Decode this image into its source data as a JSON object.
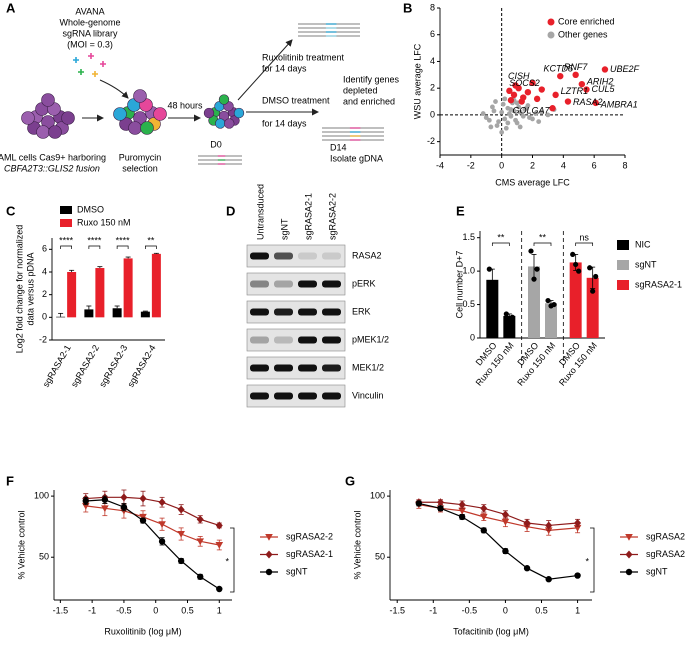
{
  "panel_labels": [
    "A",
    "B",
    "C",
    "D",
    "E",
    "F",
    "G"
  ],
  "diagram": {
    "texts": [
      "AVANA",
      "Whole-genome",
      "sgRNA library",
      "(MOI = 0.3)",
      "48 hours",
      "Ruxolitinib treatment",
      "for 14 days",
      "Identify genes",
      "depleted",
      "and enriched",
      "DMSO treatment",
      "for 14 days",
      "D0",
      "D14",
      "Isolate gDNA",
      "AML cells Cas9+ harboring",
      "CBFA2T3::GLIS2 fusion",
      "Puromycin",
      "selection"
    ]
  },
  "blot": {
    "lanes": [
      "Untransduced",
      "sgNT",
      "sgRASA2-1",
      "sgRASA2-2"
    ],
    "rows": [
      "RASA2",
      "pERK",
      "ERK",
      "pMEK1/2",
      "MEK1/2",
      "Vinculin"
    ]
  },
  "chart_data": [
    {
      "type": "scatter",
      "xlabel": "CMS  average LFC",
      "ylabel": "WSU average LFC",
      "xlim": [
        -4,
        8
      ],
      "xticks": [
        -4,
        -2,
        0,
        2,
        4,
        6,
        8
      ],
      "ylim": [
        -3,
        8
      ],
      "yticks": [
        -2,
        0,
        2,
        4,
        6,
        8
      ],
      "reference_lines": {
        "x": 0,
        "y": 0
      },
      "legend": "upper right",
      "series": [
        {
          "name": "Other genes",
          "color": "#a6a6a6",
          "x": [
            -1.2,
            -0.8,
            -0.5,
            -0.3,
            0,
            0.2,
            0.4,
            0.6,
            0.8,
            1.0,
            1.2,
            1.5,
            1.8,
            2.2,
            -1.0,
            -0.6,
            -0.2,
            0.1,
            0.3,
            0.5,
            0.7,
            0.9,
            1.1,
            1.4,
            1.7,
            2.0,
            2.6,
            3.0,
            -0.4,
            0.0,
            0.4,
            0.8,
            1.2,
            -0.7,
            0.2,
            0.6,
            1.0,
            1.6,
            2.4,
            3.4
          ],
          "values": [
            0.1,
            -0.4,
            0.3,
            -0.8,
            0.2,
            -0.3,
            0.5,
            -0.1,
            0.3,
            -0.6,
            0.2,
            0.4,
            -0.2,
            0.1,
            -0.2,
            0.6,
            -0.5,
            0.8,
            -1.0,
            0.1,
            0.9,
            -0.4,
            0.6,
            -0.1,
            0.7,
            -0.3,
            0.2,
            0.0,
            1.0,
            -1.3,
            -0.6,
            1.1,
            -0.9,
            -0.9,
            1.2,
            0.4,
            0.9,
            0.5,
            -0.5,
            0.4
          ]
        },
        {
          "name": "Core enriched",
          "color": "#e8202a",
          "x": [
            6.7,
            4.8,
            3.8,
            5.2,
            2.0,
            5.5,
            2.6,
            3.5,
            4.3,
            3.3,
            6.1,
            0.5,
            0.8,
            1.1,
            1.4,
            0.6,
            1.7,
            2.3,
            0.9,
            1.3
          ],
          "values": [
            3.4,
            3.0,
            2.9,
            2.3,
            2.4,
            1.9,
            1.9,
            1.5,
            1.0,
            0.5,
            0.9,
            1.8,
            1.5,
            2.0,
            1.3,
            1.1,
            1.7,
            1.2,
            2.2,
            1.0
          ],
          "point_labels": [
            "UBE2F",
            "RNF7",
            "KCTD5",
            "ARIH2",
            "CISH",
            "CUL5",
            "SOCS2",
            "LZTR1",
            "RASA2",
            "GOLGA7",
            "AMBRA1",
            null,
            null,
            null,
            null,
            null,
            null,
            null,
            null,
            null
          ]
        }
      ]
    },
    {
      "type": "bar",
      "ylabel": [
        "Log2 fold change for normalized",
        "data versus pDNA"
      ],
      "ylim": [
        -2,
        7
      ],
      "yticks": [
        -2,
        0,
        2,
        4,
        6
      ],
      "categories": [
        "sgRASA2-1",
        "sgRASA2-2",
        "sgRASA2-3",
        "sgRASA2-4"
      ],
      "series": [
        {
          "name": "DMSO",
          "color": "#000000",
          "values": [
            0.05,
            0.7,
            0.8,
            0.5
          ],
          "errors": [
            0.3,
            0.3,
            0.2,
            0.05
          ]
        },
        {
          "name": "Ruxo 150 nM",
          "color": "#e8202a",
          "values": [
            4.0,
            4.35,
            5.2,
            5.6
          ],
          "errors": [
            0.15,
            0.12,
            0.12,
            0.05
          ]
        }
      ],
      "annotations": [
        "****",
        "****",
        "****",
        "**"
      ]
    },
    {
      "type": "bar",
      "group_by": "series",
      "ylabel": "Cell number D+7",
      "ylim": [
        0,
        1.6
      ],
      "yticks": [
        0,
        0.5,
        {
          "value": 1,
          "label": "1.0"
        },
        1.5
      ],
      "categories": [
        "DMSO",
        "Ruxo 150 nM"
      ],
      "series": [
        {
          "name": "NIC",
          "color": "#000000",
          "values": [
            0.87,
            0.33
          ],
          "errors": [
            0.16,
            0.03
          ],
          "points": [
            [
              1.03,
              0.72
            ],
            [
              0.36,
              0.31
            ]
          ]
        },
        {
          "name": "sgNT",
          "color": "#a6a6a6",
          "values": [
            1.07,
            0.52
          ],
          "errors": [
            0.18,
            0.04
          ],
          "points": [
            [
              1.3,
              1.03,
              0.88
            ],
            [
              0.56,
              0.5,
              0.48
            ]
          ]
        },
        {
          "name": "sgRASA2-1",
          "color": "#e8202a",
          "values": [
            1.13,
            0.9
          ],
          "errors": [
            0.12,
            0.16
          ],
          "points": [
            [
              1.25,
              1.0,
              1.1
            ],
            [
              1.05,
              0.92,
              0.7
            ]
          ]
        }
      ],
      "annotations": [
        "**",
        "**",
        "ns"
      ]
    },
    {
      "type": "line",
      "xlabel": "Ruxolitinib (log μM)",
      "ylabel": "% Vehicle control",
      "xlim": [
        -1.6,
        1.2
      ],
      "xticks": [
        -1.5,
        -1,
        -0.5,
        0,
        0.5,
        1
      ],
      "ylim": [
        15,
        105
      ],
      "yticks": [
        50,
        100
      ],
      "x": [
        -1.1,
        -0.8,
        -0.5,
        -0.2,
        0.1,
        0.4,
        0.7,
        1.0
      ],
      "series": [
        {
          "name": "sgRASA2-2",
          "color": "#c0392b",
          "marker": "triangle-down",
          "values": [
            92,
            90,
            88,
            83,
            77,
            69,
            63,
            60
          ],
          "errors": [
            5,
            6,
            6,
            5,
            5,
            5,
            4,
            4
          ]
        },
        {
          "name": "sgRASA2-1",
          "color": "#8e1b1b",
          "marker": "diamond",
          "values": [
            98,
            99,
            99,
            98,
            95,
            89,
            81,
            76
          ],
          "errors": [
            4,
            5,
            6,
            6,
            4,
            4,
            3,
            2
          ]
        },
        {
          "name": "sgNT",
          "color": "#000000",
          "marker": "circle",
          "values": [
            96,
            97,
            91,
            80,
            63,
            47,
            34,
            24
          ],
          "errors": [
            3,
            3,
            3,
            2,
            3,
            2,
            2,
            1
          ]
        }
      ],
      "annotation": "*"
    },
    {
      "type": "line",
      "xlabel": "Tofacitinib (log μM)",
      "ylabel": "% Vehicle control",
      "xlim": [
        -1.6,
        1.2
      ],
      "xticks": [
        -1.5,
        -1,
        -0.5,
        0,
        0.5,
        1
      ],
      "ylim": [
        15,
        105
      ],
      "yticks": [
        50,
        100
      ],
      "x": [
        -1.2,
        -0.9,
        -0.6,
        -0.3,
        0,
        0.3,
        0.6,
        1.0
      ],
      "series": [
        {
          "name": "sgRASA2-2",
          "color": "#c0392b",
          "marker": "triangle-down",
          "values": [
            93,
            90,
            88,
            83,
            79,
            75,
            72,
            74
          ],
          "errors": [
            3,
            3,
            3,
            3,
            4,
            4,
            4,
            4
          ]
        },
        {
          "name": "sgRASA2-1",
          "color": "#8e1b1b",
          "marker": "diamond",
          "values": [
            95,
            95,
            93,
            90,
            85,
            78,
            76,
            78
          ],
          "errors": [
            2,
            2,
            3,
            3,
            3,
            3,
            4,
            3
          ]
        },
        {
          "name": "sgNT",
          "color": "#000000",
          "marker": "circle",
          "values": [
            94,
            90,
            83,
            72,
            55,
            41,
            32,
            35
          ],
          "errors": [
            2,
            2,
            2,
            2,
            2,
            1,
            1,
            1
          ]
        }
      ],
      "annotation": "*"
    }
  ]
}
